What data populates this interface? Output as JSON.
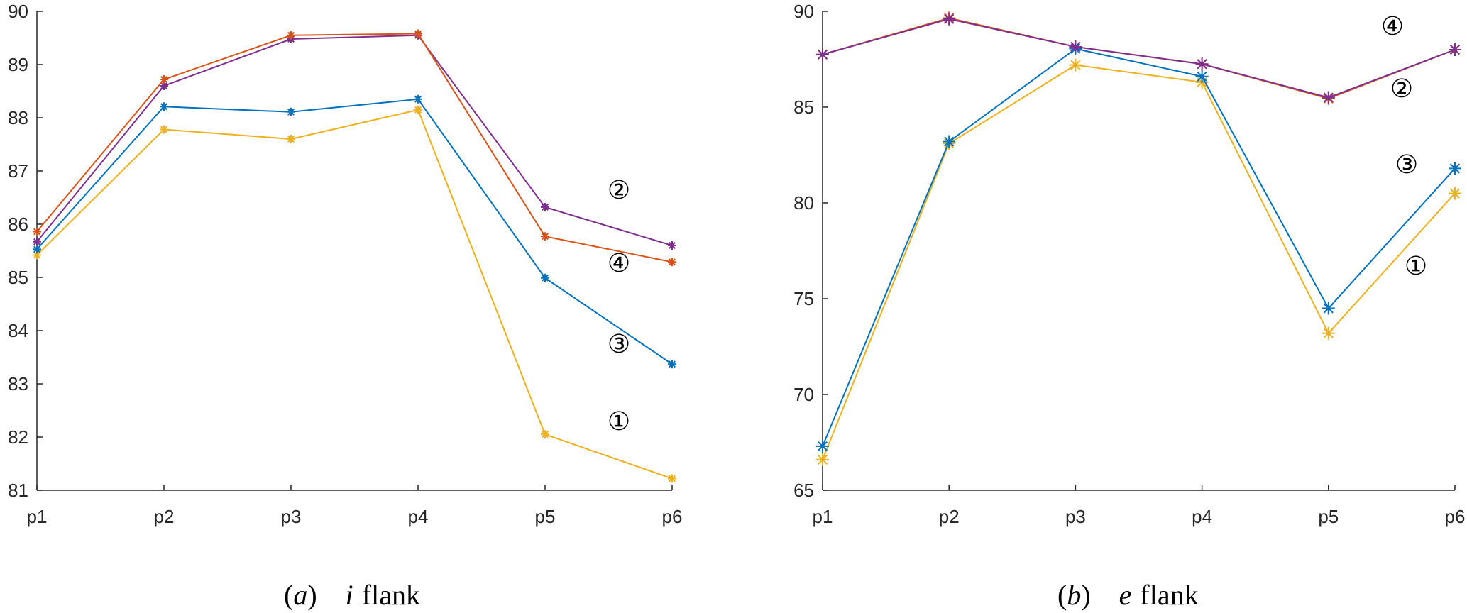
{
  "chart_data": [
    {
      "type": "line",
      "caption_letter": "a",
      "caption_var": "i",
      "caption_word": "flank",
      "categories": [
        "p1",
        "p2",
        "p3",
        "p4",
        "p5",
        "p6"
      ],
      "ylim": [
        81,
        90
      ],
      "yticks": [
        81,
        82,
        83,
        84,
        85,
        86,
        87,
        88,
        89,
        90
      ],
      "marker": "small-star",
      "series": [
        {
          "label": "①",
          "color": "#EDB120",
          "values": [
            85.42,
            87.78,
            87.6,
            88.15,
            82.05,
            81.22
          ],
          "label_anchor": 4
        },
        {
          "label": "②",
          "color": "#7E2F8E",
          "values": [
            85.67,
            88.6,
            89.48,
            89.55,
            86.32,
            85.6
          ],
          "label_anchor": 4
        },
        {
          "label": "③",
          "color": "#0072BD",
          "values": [
            85.53,
            88.21,
            88.11,
            88.35,
            84.99,
            83.37
          ],
          "label_anchor": 4
        },
        {
          "label": "④",
          "color": "#D95319",
          "values": [
            85.86,
            88.72,
            89.55,
            89.58,
            85.77,
            85.29
          ],
          "label_anchor": 4
        }
      ]
    },
    {
      "type": "line",
      "caption_letter": "b",
      "caption_var": "e",
      "caption_word": "flank",
      "categories": [
        "p1",
        "p2",
        "p3",
        "p4",
        "p5",
        "p6"
      ],
      "ylim": [
        65,
        90
      ],
      "yticks": [
        65,
        70,
        75,
        80,
        85,
        90
      ],
      "marker": "large-star",
      "series": [
        {
          "label": "①",
          "color": "#EDB120",
          "values": [
            66.6,
            83.1,
            87.2,
            86.3,
            73.2,
            80.5
          ]
        },
        {
          "label": "②",
          "color": "#D95319",
          "values": [
            87.75,
            89.65,
            88.15,
            87.25,
            85.45,
            88.0
          ]
        },
        {
          "label": "③",
          "color": "#0072BD",
          "values": [
            67.3,
            83.2,
            88.05,
            86.6,
            74.5,
            81.8
          ]
        },
        {
          "label": "④",
          "color": "#7E2F8E",
          "values": [
            87.75,
            89.6,
            88.15,
            87.25,
            85.5,
            88.0
          ]
        }
      ]
    }
  ]
}
